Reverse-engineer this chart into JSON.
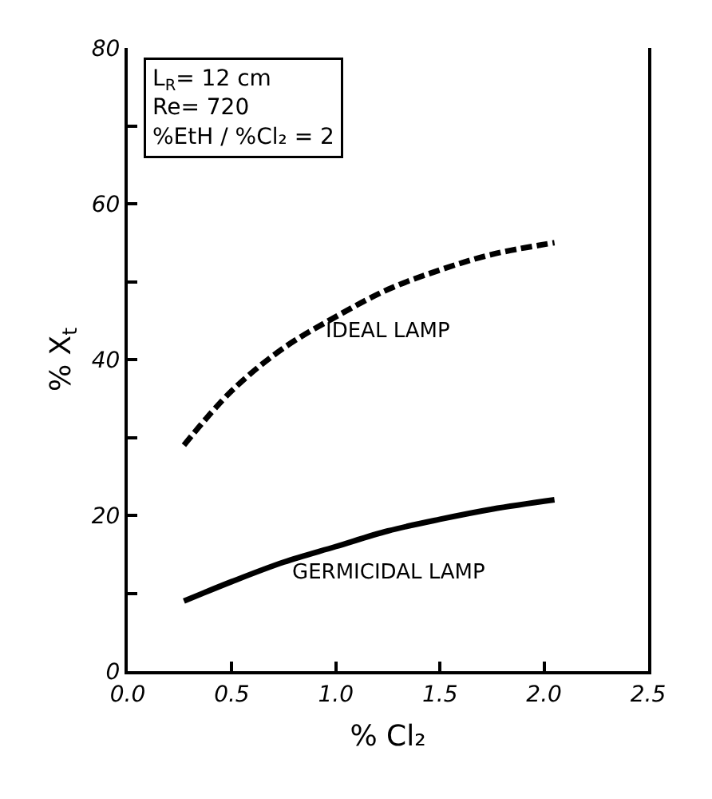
{
  "chart_data": {
    "type": "line",
    "xlabel": "% Cl₂",
    "ylabel": "% X$_{t}$",
    "annotations": [
      "L$_{R}$= 12 cm",
      "Re= 720",
      "%EtH / %Cl₂ = 2"
    ],
    "x": [
      0.27,
      0.5,
      0.75,
      1.0,
      1.25,
      1.5,
      1.75,
      2.05
    ],
    "series": [
      {
        "name": "IDEAL LAMP",
        "color": "#000000",
        "line_style": "dashed",
        "values": [
          29,
          36,
          41.5,
          45.5,
          49,
          51.5,
          53.5,
          55
        ]
      },
      {
        "name": "GERMICIDAL LAMP",
        "color": "#000000",
        "line_style": "solid",
        "values": [
          9,
          11.5,
          14,
          16,
          18,
          19.5,
          20.8,
          22
        ]
      }
    ],
    "xlim": [
      0,
      2.5
    ],
    "xticks": [
      {
        "value": 0,
        "label": "0.0"
      },
      0.5,
      {
        "value": 1,
        "label": "1.0"
      },
      1.5,
      {
        "value": 2,
        "label": "2.0"
      },
      2.5
    ],
    "ylim": [
      0,
      80
    ],
    "yticks": [
      0,
      {
        "value": 10,
        "label": null
      },
      20,
      {
        "value": 30,
        "label": null
      },
      40,
      {
        "value": 50,
        "label": null
      },
      60,
      {
        "value": 70,
        "label": null
      },
      80
    ],
    "grid": false,
    "legend": false,
    "marker": "none"
  }
}
